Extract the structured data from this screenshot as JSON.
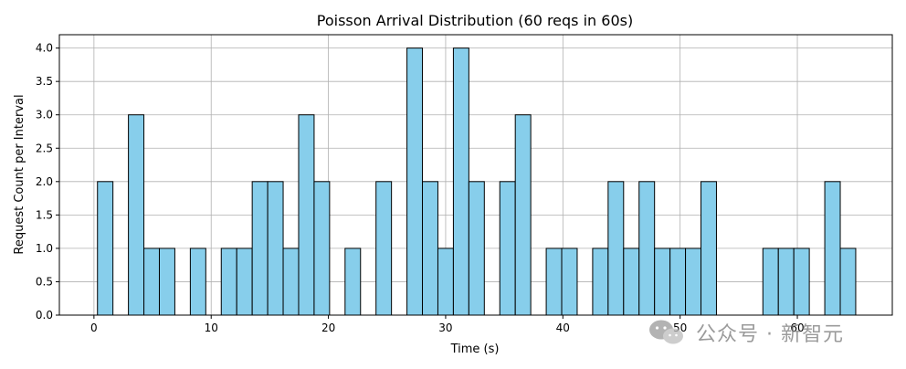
{
  "chart_data": {
    "type": "bar",
    "title": "Poisson Arrival Distribution (60 reqs in 60s)",
    "xlabel": "Time (s)",
    "ylabel": "Request Count per Interval",
    "xlim": [
      -2.95,
      68.1
    ],
    "ylim": [
      0,
      4.2
    ],
    "xticks": [
      0,
      10,
      20,
      30,
      40,
      50,
      60
    ],
    "yticks": [
      0.0,
      0.5,
      1.0,
      1.5,
      2.0,
      2.5,
      3.0,
      3.5,
      4.0
    ],
    "ytick_labels": [
      "0.0",
      "0.5",
      "1.0",
      "1.5",
      "2.0",
      "2.5",
      "3.0",
      "3.5",
      "4.0"
    ],
    "bin_edges": [
      0.3,
      1.62,
      2.94,
      4.26,
      5.58,
      6.9,
      8.22,
      9.54,
      10.86,
      12.18,
      13.5,
      14.82,
      16.14,
      17.46,
      18.78,
      20.1,
      21.42,
      22.74,
      24.06,
      25.38,
      26.7,
      28.02,
      29.34,
      30.66,
      31.98,
      33.3,
      34.62,
      35.94,
      37.26,
      38.58,
      39.9,
      41.22,
      42.54,
      43.86,
      45.18,
      46.5,
      47.82,
      49.14,
      50.46,
      51.78,
      53.1,
      54.42,
      55.74,
      57.06,
      58.38,
      59.7,
      61.02,
      62.34,
      63.66,
      64.98
    ],
    "values": [
      2,
      0,
      3,
      1,
      1,
      0,
      1,
      0,
      1,
      1,
      2,
      2,
      1,
      3,
      2,
      0,
      1,
      0,
      2,
      0,
      4,
      2,
      1,
      4,
      2,
      0,
      2,
      3,
      0,
      1,
      1,
      0,
      1,
      2,
      1,
      2,
      1,
      1,
      1,
      2,
      0,
      0,
      0,
      1,
      1,
      1,
      0,
      2,
      1
    ],
    "bar_color": "#87ceeb",
    "edge_color": "#000000",
    "grid": true
  },
  "watermark": {
    "text": "公众号 · 新智元",
    "icon": "wechat-icon"
  }
}
